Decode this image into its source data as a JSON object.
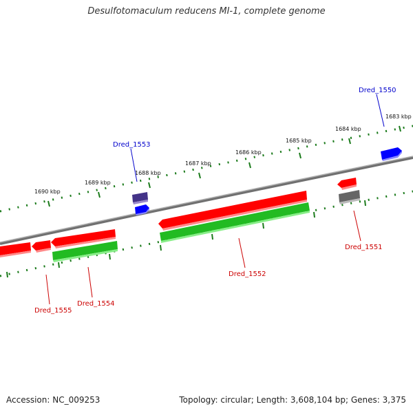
{
  "title": "Desulfotomaculum reducens MI-1, complete genome",
  "footer": {
    "accession": "Accession: NC_009253",
    "summary": "Topology: circular; Length: 3,608,104 bp; Genes: 3,375"
  },
  "scale_labels": [
    "1690 kbp",
    "1689 kbp",
    "1688 kbp",
    "1687 kbp",
    "1686 kbp",
    "1685 kbp",
    "1684 kbp",
    "1683 kbp"
  ],
  "genes": [
    {
      "id": "Dred_1550",
      "color": "#0000cc"
    },
    {
      "id": "Dred_1551",
      "color": "#cc0000"
    },
    {
      "id": "Dred_1552",
      "color": "#cc0000"
    },
    {
      "id": "Dred_1553",
      "color": "#0000cc"
    },
    {
      "id": "Dred_1554",
      "color": "#cc0000"
    },
    {
      "id": "Dred_1555",
      "color": "#cc0000"
    }
  ],
  "colors": {
    "backbone": "#808080",
    "cds_forward": "#ff0000",
    "cds_reverse": "#22bb22",
    "blue_feature": "#0000ff",
    "grey_feature": "#666666",
    "purple_feature": "#443388",
    "tick_color": "#1a7a1a"
  }
}
